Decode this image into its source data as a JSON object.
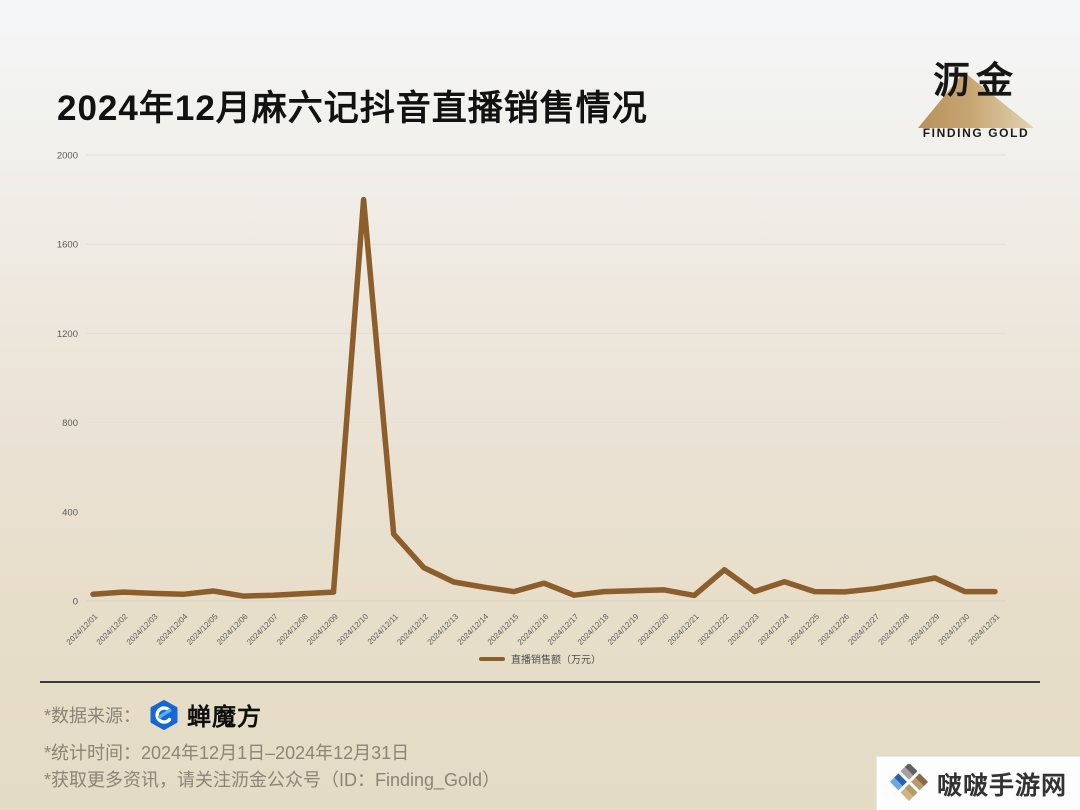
{
  "page": {
    "title": "2024年12月麻六记抖音直播销售情况"
  },
  "brand": {
    "cn": "沥金",
    "en": "FINDING GOLD"
  },
  "chart_data": {
    "type": "line",
    "title": "2024年12月麻六记抖音直播销售情况",
    "series_name": "直播销售额（万元）",
    "categories": [
      "2024/12/01",
      "2024/12/02",
      "2024/12/03",
      "2024/12/04",
      "2024/12/05",
      "2024/12/06",
      "2024/12/07",
      "2024/12/08",
      "2024/12/09",
      "2024/12/10",
      "2024/12/11",
      "2024/12/12",
      "2024/12/13",
      "2024/12/14",
      "2024/12/15",
      "2024/12/16",
      "2024/12/17",
      "2024/12/18",
      "2024/12/19",
      "2024/12/20",
      "2024/12/21",
      "2024/12/22",
      "2024/12/23",
      "2024/12/24",
      "2024/12/25",
      "2024/12/26",
      "2024/12/27",
      "2024/12/28",
      "2024/12/29",
      "2024/12/30",
      "2024/12/31"
    ],
    "values": [
      30,
      40,
      34,
      30,
      45,
      22,
      26,
      33,
      40,
      1800,
      300,
      150,
      85,
      62,
      42,
      80,
      26,
      42,
      46,
      50,
      25,
      140,
      42,
      86,
      42,
      41,
      55,
      78,
      103,
      42,
      42
    ],
    "ylim": [
      0,
      2000
    ],
    "yticks": [
      0,
      400,
      800,
      1200,
      1600,
      2000
    ],
    "grid": true,
    "legend_position": "bottom-center",
    "line_color": "#8B5E2B",
    "grid_color": "#e3dfd6",
    "axis_color": "#d8d2c4"
  },
  "footer": {
    "source_label": "*数据来源：",
    "source_name": "蝉魔方",
    "period": "*统计时间：2024年12月1日–2024年12月31日",
    "more_info": "*获取更多资讯，请关注沥金公众号（ID：Finding_Gold）"
  },
  "watermark": {
    "text": "啵啵手游网"
  },
  "colors": {
    "accent_gold": "#c9a96c",
    "line_brown": "#8B5E2B",
    "footer_text": "#8b8577"
  }
}
